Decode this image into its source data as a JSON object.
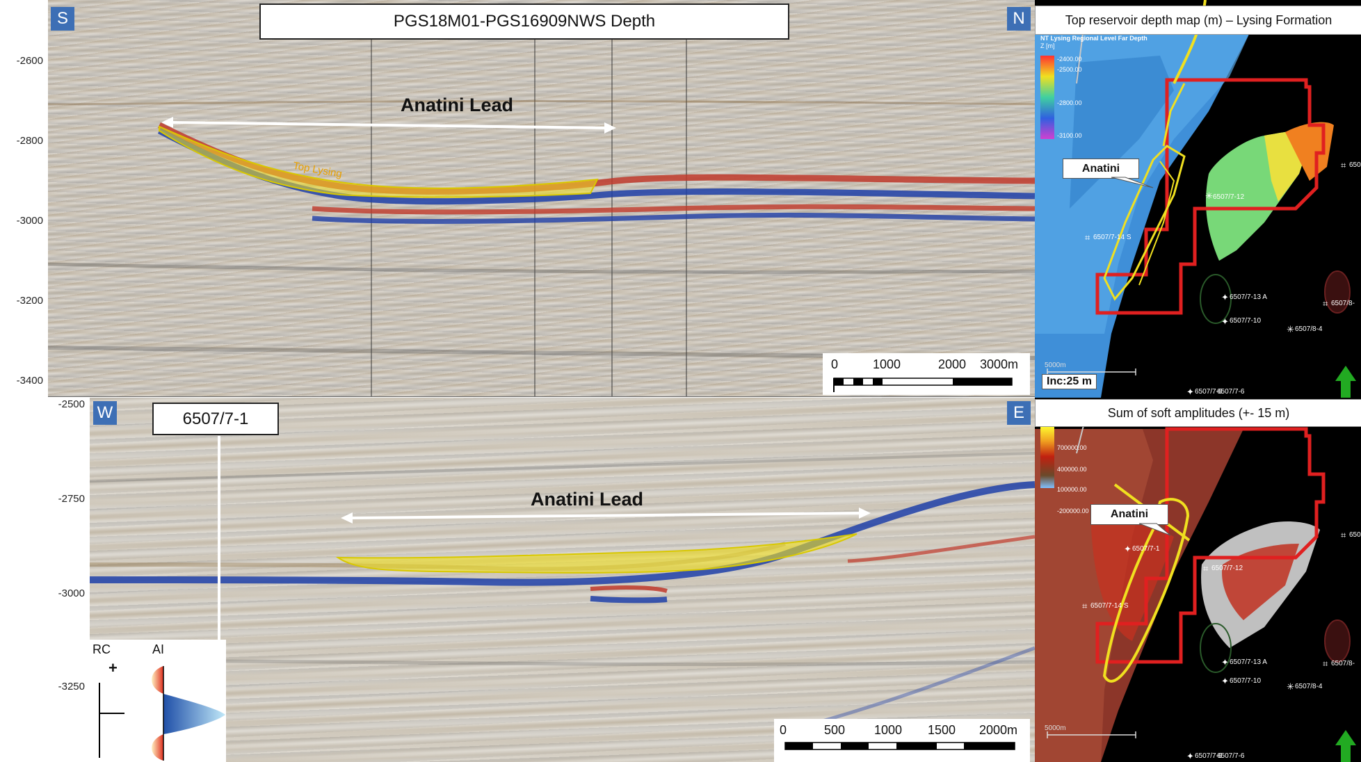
{
  "top_section": {
    "badge_left": "S",
    "badge_right": "N",
    "title": "PGS18M01-PGS16909NWS Depth",
    "y_ticks": [
      "-2600",
      "-2800",
      "-3000",
      "-3200",
      "-3400"
    ],
    "lead_label": "Anatini Lead",
    "horizon_label": "Top Lysing",
    "scale_labels": [
      "0",
      "1000",
      "2000",
      "3000m"
    ]
  },
  "bottom_section": {
    "badge_left": "W",
    "badge_right": "E",
    "well_label": "6507/7-1",
    "y_ticks": [
      "-2500",
      "-2750",
      "-3000",
      "-3250"
    ],
    "lead_label": "Anatini Lead",
    "scale_labels": [
      "0",
      "500",
      "1000",
      "1500",
      "2000m"
    ],
    "legend": {
      "rc": "RC",
      "ai": "AI",
      "plus": "+"
    }
  },
  "map_top": {
    "title": "Top reservoir depth map (m) – Lysing Formation",
    "legend_title": "NT Lysing Regional Level Far Depth",
    "legend_unit": "Z [m]",
    "legend_values": [
      "-2400.00",
      "-2500.00",
      "-2800.00",
      "-3100.00"
    ],
    "callout": "Anatini",
    "inc_label": "Inc:25 m",
    "scale_label": "5000m",
    "wells": [
      "6507/7-12",
      "6507/7-14 S",
      "6507/7-13 A",
      "6507/7-10",
      "6507/8-4",
      "6507/8-",
      "650",
      "6507/7-6",
      "6507/7-6"
    ]
  },
  "map_bottom": {
    "title": "Sum of soft amplitudes (+- 15 m)",
    "legend_values": [
      "700000.00",
      "400000.00",
      "100000.00",
      "-200000.00"
    ],
    "callout": "Anatini",
    "scale_label": "5000m",
    "wells": [
      "6507/7-1",
      "6507/7-12",
      "6507/7-14 S",
      "6507/7-13 A",
      "6507/7-10",
      "6507/8-4",
      "6507/8-",
      "650",
      "6507/7-6",
      "6507/7-6"
    ]
  },
  "colors": {
    "badge_blue": "#3d6fb5",
    "north_arrow": "#22aa22",
    "prospect_red": "#e02020",
    "lead_yellow": "#f0e020"
  }
}
